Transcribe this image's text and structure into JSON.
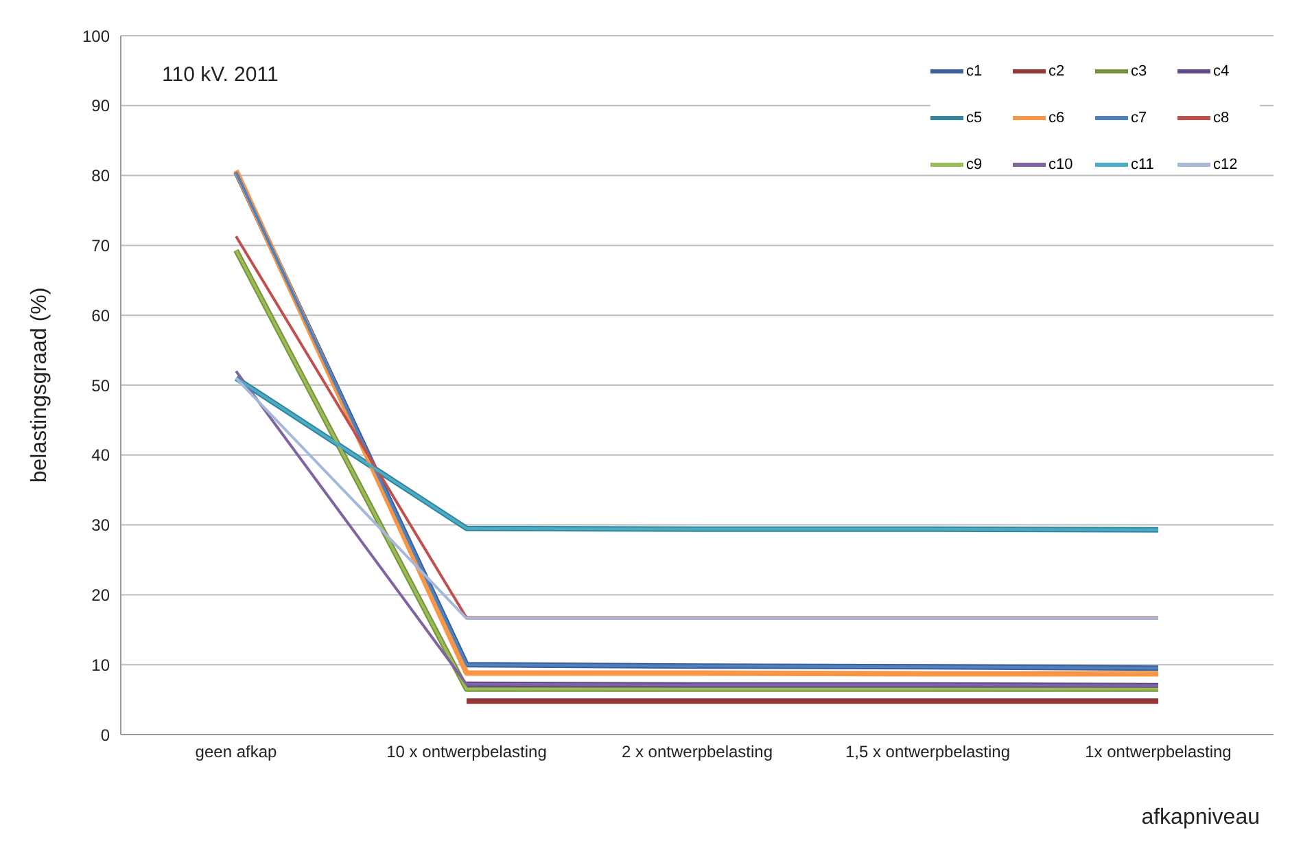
{
  "chart_data": {
    "type": "line",
    "categories": [
      "geen afkap",
      "10 x ontwerpbelasting",
      "2 x ontwerpbelasting",
      "1,5 x ontwerpbelasting",
      "1x ontwerpbelasting"
    ],
    "xlabel": "afkapniveau",
    "ylabel": "belastingsgraad (%)",
    "annotations": [
      "110 kV. 2011"
    ],
    "ylim": [
      0,
      100
    ],
    "yticks": [
      0,
      10,
      20,
      30,
      40,
      50,
      60,
      70,
      80,
      90,
      100
    ],
    "grid": "y",
    "legend": "top right",
    "marker": "none",
    "line_style": "solid",
    "series": [
      {
        "name": "c1",
        "color": "#3a5f9e",
        "values": [
          80.5,
          10,
          9.8,
          9.7,
          9.5
        ]
      },
      {
        "name": "c2",
        "color": "#953735",
        "values": [
          null,
          4.8,
          4.8,
          4.8,
          4.8
        ]
      },
      {
        "name": "c3",
        "color": "#77933c",
        "values": [
          69.3,
          6.5,
          6.5,
          6.5,
          6.5
        ]
      },
      {
        "name": "c4",
        "color": "#5f4b8b",
        "values": [
          null,
          7.2,
          7.1,
          7.1,
          7
        ]
      },
      {
        "name": "c5",
        "color": "#31859c",
        "values": [
          51,
          29.5,
          29.4,
          29.4,
          29.3
        ]
      },
      {
        "name": "c6",
        "color": "#f79646",
        "values": [
          80.7,
          8.8,
          8.8,
          8.7,
          8.7
        ]
      },
      {
        "name": "c7",
        "color": "#4f81bd",
        "values": [
          80.5,
          10,
          9.8,
          9.7,
          9.5
        ]
      },
      {
        "name": "c8",
        "color": "#c0504d",
        "values": [
          71.3,
          16.7,
          16.7,
          16.7,
          16.7
        ]
      },
      {
        "name": "c9",
        "color": "#9bbb59",
        "values": [
          69.3,
          6.5,
          6.5,
          6.5,
          6.5
        ]
      },
      {
        "name": "c10",
        "color": "#8064a2",
        "values": [
          52,
          7.2,
          7.1,
          7.1,
          7
        ]
      },
      {
        "name": "c11",
        "color": "#4bacc6",
        "values": [
          51,
          29.5,
          29.4,
          29.4,
          29.3
        ]
      },
      {
        "name": "c12",
        "color": "#a5b8dc",
        "values": [
          51,
          16.6,
          16.6,
          16.6,
          16.6
        ]
      }
    ]
  }
}
